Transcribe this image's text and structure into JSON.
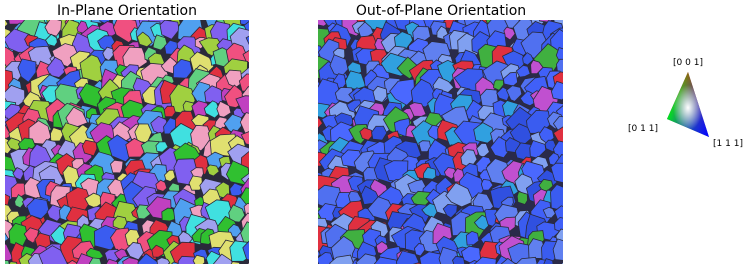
{
  "panels": [
    {
      "title": "In-Plane Orientation"
    },
    {
      "title": "Out-of-Plane Orientation"
    }
  ],
  "color_key": {
    "top": "[0 0 1]",
    "left": "[0 1 1]",
    "right": "[1 1 1]"
  }
}
